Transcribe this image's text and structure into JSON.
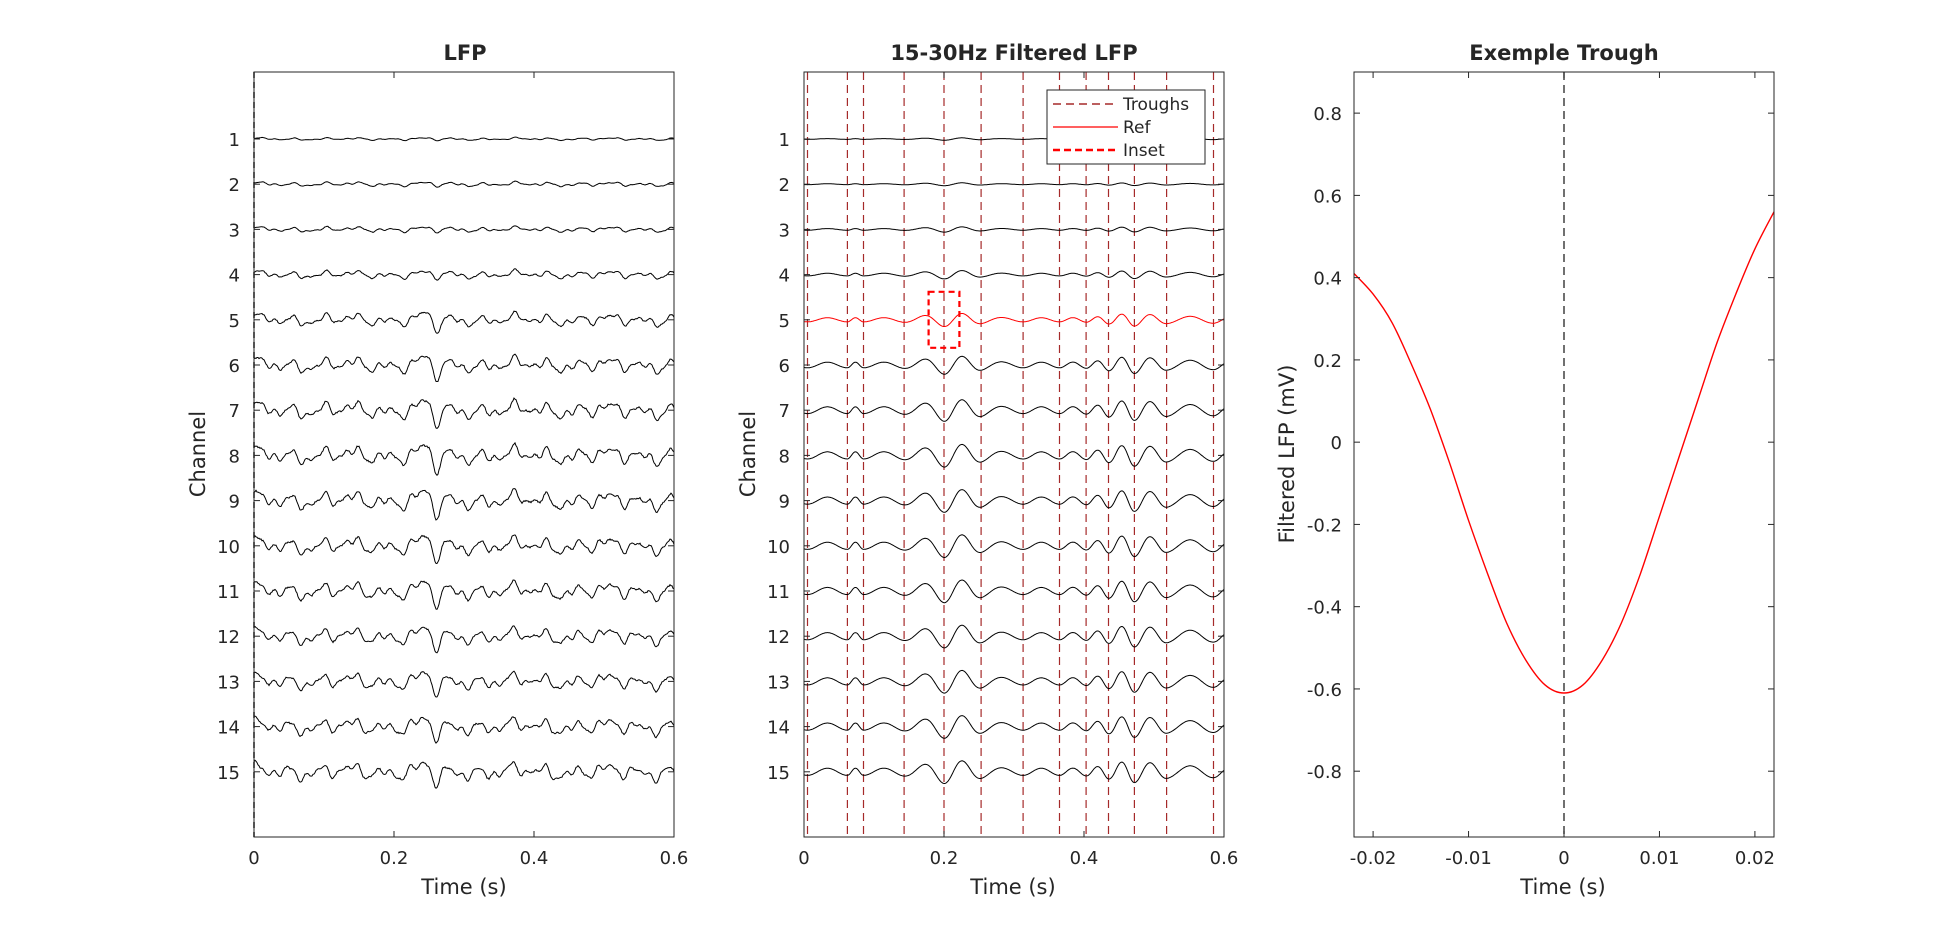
{
  "chart_data": [
    {
      "type": "line",
      "title": "LFP",
      "xlabel": "Time (s)",
      "ylabel": "Channel",
      "xlim": [
        0,
        0.6
      ],
      "xticks": [
        "0",
        "0.2",
        "0.4",
        "0.6"
      ],
      "ylim": [
        0,
        16
      ],
      "channels": [
        "1",
        "2",
        "3",
        "4",
        "5",
        "6",
        "7",
        "8",
        "9",
        "10",
        "11",
        "12",
        "13",
        "14",
        "15"
      ],
      "series_color": "#000000",
      "reference_line": {
        "x": 0,
        "style": "dashed",
        "color": "#000000"
      },
      "amplitude_profile": [
        0.15,
        0.25,
        0.3,
        0.45,
        0.7,
        0.85,
        0.95,
        1.0,
        1.0,
        0.95,
        0.95,
        0.9,
        0.9,
        0.9,
        0.95
      ]
    },
    {
      "type": "line",
      "title": "15-30Hz Filtered LFP",
      "xlabel": "Time (s)",
      "ylabel": "Channel",
      "xlim": [
        0,
        0.6
      ],
      "xticks": [
        "0",
        "0.2",
        "0.4",
        "0.6"
      ],
      "ylim": [
        0,
        16
      ],
      "channels": [
        "1",
        "2",
        "3",
        "4",
        "5",
        "6",
        "7",
        "8",
        "9",
        "10",
        "11",
        "12",
        "13",
        "14",
        "15"
      ],
      "reference_channel": "5",
      "troughs_x": [
        0.005,
        0.062,
        0.085,
        0.143,
        0.2,
        0.253,
        0.313,
        0.365,
        0.403,
        0.435,
        0.472,
        0.518,
        0.585
      ],
      "inset_box": {
        "x": [
          0.178,
          0.222
        ],
        "channel": "5"
      },
      "amplitude_profile": [
        0.1,
        0.12,
        0.22,
        0.35,
        0.55,
        0.75,
        0.9,
        0.95,
        0.95,
        0.95,
        0.95,
        0.95,
        0.95,
        0.95,
        0.95
      ],
      "colors": {
        "trace": "#000000",
        "ref": "#ff0000",
        "troughs": "#a52a2a",
        "inset": "#ff0000"
      },
      "legend": {
        "position": "top-right",
        "entries": [
          {
            "label": "Troughs",
            "style": "dashed",
            "color": "#a52a2a"
          },
          {
            "label": "Ref",
            "style": "solid",
            "color": "#ff0000"
          },
          {
            "label": "Inset",
            "style": "bold-dashed",
            "color": "#ff0000"
          }
        ]
      }
    },
    {
      "type": "line",
      "title": "Exemple Trough",
      "xlabel": "Time (s)",
      "ylabel": "Filtered LFP (mV)",
      "xlim": [
        -0.022,
        0.022
      ],
      "ylim": [
        -0.96,
        0.9
      ],
      "xticks": [
        -0.02,
        -0.01,
        0,
        0.01,
        0.02
      ],
      "xtick_labels": [
        "-0.02",
        "-0.01",
        "0",
        "0.01",
        "0.02"
      ],
      "yticks": [
        0.8,
        0.6,
        0.4,
        0.2,
        0,
        -0.2,
        -0.4,
        -0.6,
        -0.8
      ],
      "ytick_labels": [
        "0.8",
        "0.6",
        "0.4",
        "0.2",
        "0",
        "-0.2",
        "-0.4",
        "-0.6",
        "-0.8"
      ],
      "series_color": "#ff0000",
      "reference_line": {
        "x": 0,
        "style": "dashed",
        "color": "#404040"
      },
      "x": [
        -0.022,
        -0.02,
        -0.018,
        -0.016,
        -0.014,
        -0.012,
        -0.01,
        -0.008,
        -0.006,
        -0.004,
        -0.002,
        0,
        0.002,
        0.004,
        0.006,
        0.008,
        0.01,
        0.012,
        0.014,
        0.016,
        0.018,
        0.02,
        0.022
      ],
      "y": [
        0.41,
        0.36,
        0.29,
        0.19,
        0.08,
        -0.05,
        -0.19,
        -0.32,
        -0.44,
        -0.53,
        -0.59,
        -0.61,
        -0.59,
        -0.53,
        -0.44,
        -0.32,
        -0.18,
        -0.04,
        0.1,
        0.24,
        0.36,
        0.47,
        0.56
      ]
    }
  ]
}
